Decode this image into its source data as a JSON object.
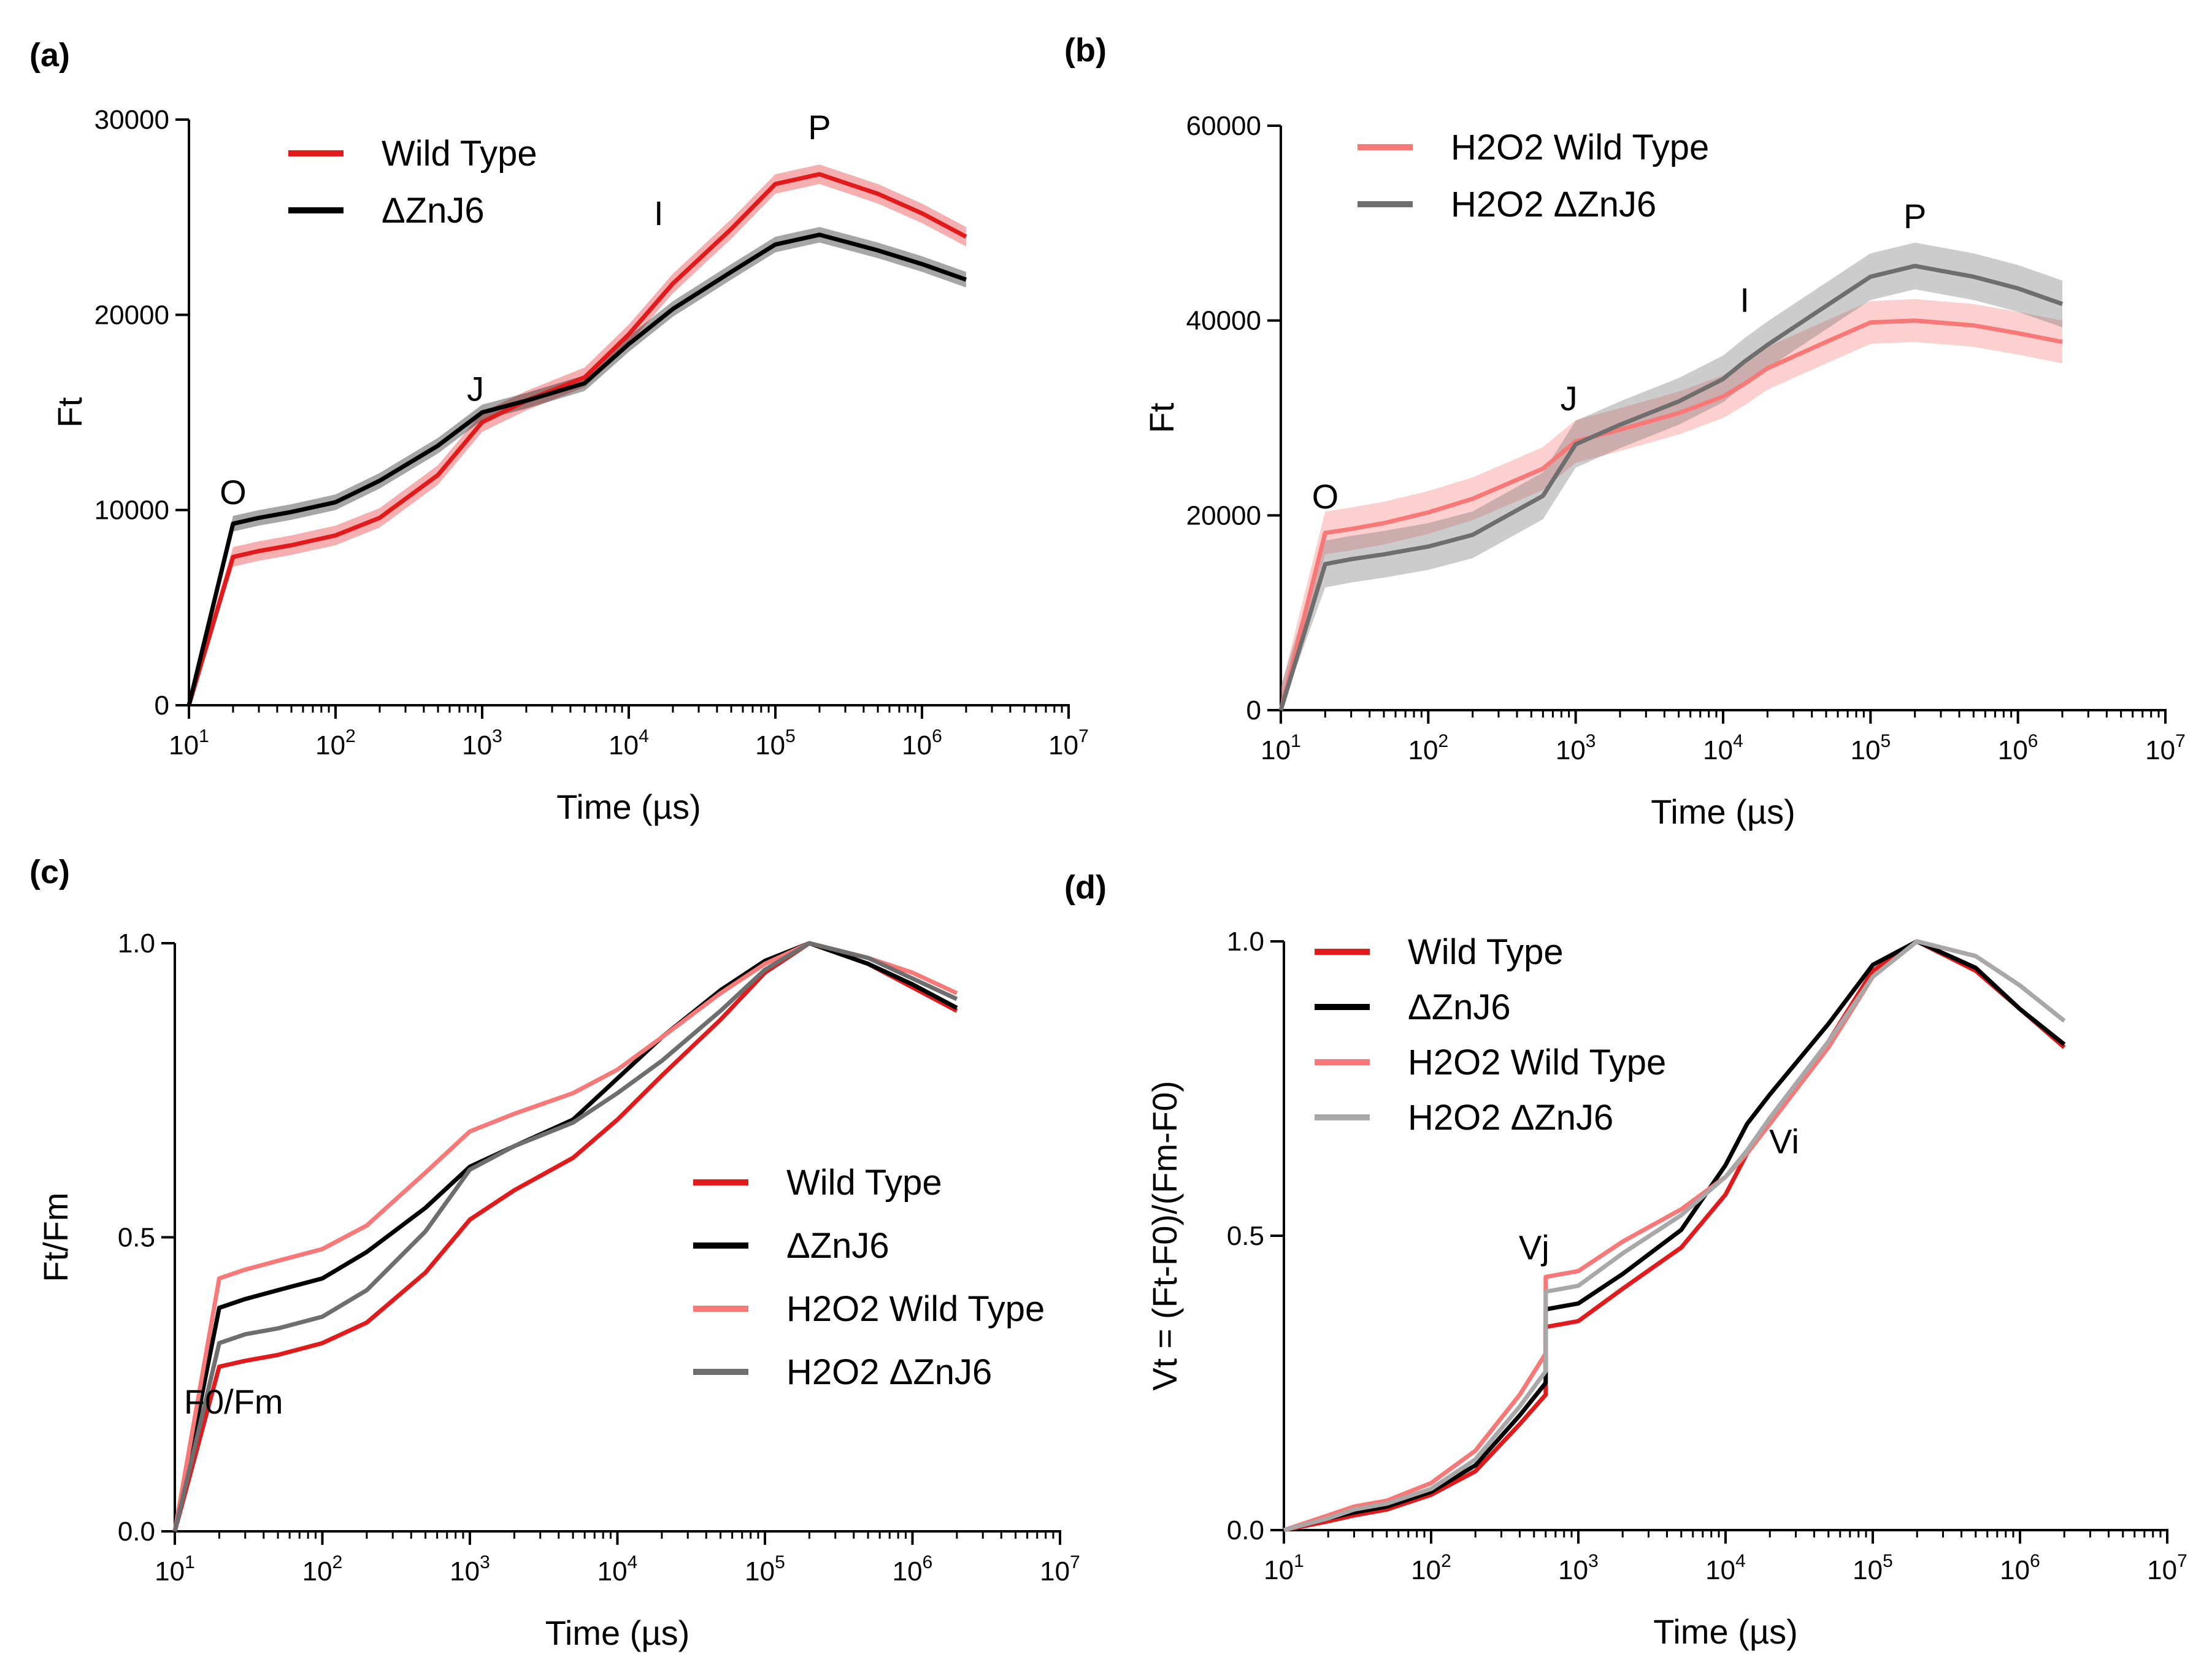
{
  "chart_data": [
    {
      "panel": "(a)",
      "type": "line",
      "xscale": "log",
      "xlim": [
        10,
        10000000
      ],
      "ylim": [
        0,
        30000
      ],
      "xticks": [
        10,
        100,
        1000,
        10000,
        100000,
        1000000,
        10000000
      ],
      "xtick_labels": [
        "10^1",
        "10^2",
        "10^3",
        "10^4",
        "10^5",
        "10^6",
        "10^7"
      ],
      "yticks": [
        0,
        10000,
        20000,
        30000
      ],
      "ytick_labels": [
        "0",
        "10000",
        "20000",
        "30000"
      ],
      "xlabel": "Time (µs)",
      "ylabel": "Ft",
      "legend_position": "top-left",
      "annotations": [
        {
          "text": "O",
          "x": 20,
          "y": 10300
        },
        {
          "text": "J",
          "x": 900,
          "y": 15600
        },
        {
          "text": "I",
          "x": 16000,
          "y": 24600
        },
        {
          "text": "P",
          "x": 200000,
          "y": 29000
        }
      ],
      "series": [
        {
          "name": "Wild Type",
          "color": "#e31a1c",
          "error_band": 500,
          "x": [
            10,
            20,
            30,
            50,
            100,
            200,
            500,
            1000,
            2000,
            5000,
            10000,
            20000,
            50000,
            100000,
            200000,
            500000,
            1000000,
            2000000
          ],
          "y": [
            0,
            7600,
            7900,
            8200,
            8700,
            9600,
            11800,
            14500,
            15600,
            16800,
            19000,
            21600,
            24400,
            26700,
            27200,
            26200,
            25200,
            24000
          ]
        },
        {
          "name": "ΔZnJ6",
          "color": "#000000",
          "error_band": 400,
          "x": [
            10,
            20,
            30,
            50,
            100,
            200,
            500,
            1000,
            2000,
            5000,
            10000,
            20000,
            50000,
            100000,
            200000,
            500000,
            1000000,
            2000000
          ],
          "y": [
            0,
            9300,
            9600,
            9900,
            10400,
            11500,
            13300,
            15000,
            15600,
            16500,
            18500,
            20300,
            22200,
            23600,
            24100,
            23300,
            22600,
            21800
          ]
        }
      ]
    },
    {
      "panel": "(b)",
      "type": "line",
      "xscale": "log",
      "xlim": [
        10,
        10000000
      ],
      "ylim": [
        0,
        60000
      ],
      "xticks": [
        10,
        100,
        1000,
        10000,
        100000,
        1000000,
        10000000
      ],
      "xtick_labels": [
        "10^1",
        "10^2",
        "10^3",
        "10^4",
        "10^5",
        "10^6",
        "10^7"
      ],
      "yticks": [
        0,
        20000,
        40000,
        60000
      ],
      "ytick_labels": [
        "0",
        "20000",
        "40000",
        "60000"
      ],
      "xlabel": "Time (µs)",
      "ylabel": "Ft",
      "legend_position": "top-left",
      "annotations": [
        {
          "text": "O",
          "x": 20,
          "y": 20700
        },
        {
          "text": "J",
          "x": 900,
          "y": 30800
        },
        {
          "text": "I",
          "x": 14000,
          "y": 40900
        },
        {
          "text": "P",
          "x": 200000,
          "y": 49500
        }
      ],
      "series": [
        {
          "name": "H2O2 Wild Type",
          "color": "#f87878",
          "error_band": 2200,
          "x": [
            10,
            20,
            30,
            50,
            100,
            200,
            600,
            1000,
            2000,
            5000,
            10000,
            14000,
            20000,
            50000,
            100000,
            200000,
            500000,
            1000000,
            2000000
          ],
          "y": [
            0,
            18200,
            18600,
            19200,
            20300,
            21700,
            24800,
            27600,
            28800,
            30500,
            32200,
            33500,
            35100,
            37800,
            39800,
            40000,
            39500,
            38700,
            37800
          ]
        },
        {
          "name": "H2O2 ΔZnJ6",
          "color": "#6e6e6e",
          "error_band": 2400,
          "x": [
            10,
            20,
            30,
            50,
            100,
            200,
            600,
            1000,
            2000,
            5000,
            10000,
            14000,
            20000,
            50000,
            100000,
            200000,
            500000,
            1000000,
            2000000
          ],
          "y": [
            0,
            15000,
            15500,
            16000,
            16800,
            18000,
            22000,
            27300,
            29300,
            31700,
            34000,
            35800,
            37500,
            41500,
            44500,
            45600,
            44500,
            43300,
            41700
          ]
        }
      ]
    },
    {
      "panel": "(c)",
      "type": "line",
      "xscale": "log",
      "xlim": [
        10,
        10000000
      ],
      "ylim": [
        0,
        1.0
      ],
      "xticks": [
        10,
        100,
        1000,
        10000,
        100000,
        1000000,
        10000000
      ],
      "xtick_labels": [
        "10^1",
        "10^2",
        "10^3",
        "10^4",
        "10^5",
        "10^6",
        "10^7"
      ],
      "yticks": [
        0,
        0.5,
        1.0
      ],
      "ytick_labels": [
        "0.0",
        "0.5",
        "1.0"
      ],
      "xlabel": "Time (µs)",
      "ylabel": "Ft/Fm",
      "legend_position": "bottom-right",
      "annotations": [
        {
          "text": "F0/Fm",
          "x": 25,
          "y": 0.2
        }
      ],
      "series": [
        {
          "name": "Wild Type",
          "color": "#e31a1c",
          "x": [
            10,
            20,
            30,
            50,
            100,
            200,
            500,
            1000,
            2000,
            5000,
            10000,
            20000,
            50000,
            100000,
            200000,
            500000,
            1000000,
            2000000
          ],
          "y": [
            0,
            0.28,
            0.29,
            0.3,
            0.32,
            0.355,
            0.44,
            0.53,
            0.58,
            0.635,
            0.7,
            0.775,
            0.87,
            0.95,
            1.0,
            0.965,
            0.925,
            0.885
          ]
        },
        {
          "name": "ΔZnJ6",
          "color": "#000000",
          "x": [
            10,
            20,
            30,
            50,
            100,
            200,
            500,
            1000,
            2000,
            5000,
            10000,
            20000,
            50000,
            100000,
            200000,
            500000,
            1000000,
            2000000
          ],
          "y": [
            0,
            0.38,
            0.395,
            0.41,
            0.43,
            0.475,
            0.55,
            0.62,
            0.655,
            0.7,
            0.77,
            0.84,
            0.92,
            0.97,
            1.0,
            0.965,
            0.93,
            0.89
          ]
        },
        {
          "name": "H2O2 Wild Type",
          "color": "#f87878",
          "x": [
            10,
            20,
            30,
            50,
            100,
            200,
            500,
            1000,
            2000,
            5000,
            10000,
            20000,
            50000,
            100000,
            200000,
            500000,
            1000000,
            2000000
          ],
          "y": [
            0,
            0.43,
            0.445,
            0.46,
            0.48,
            0.52,
            0.61,
            0.68,
            0.71,
            0.745,
            0.785,
            0.84,
            0.915,
            0.965,
            1.0,
            0.975,
            0.95,
            0.915
          ]
        },
        {
          "name": "H2O2 ΔZnJ6",
          "color": "#6e6e6e",
          "x": [
            10,
            20,
            30,
            50,
            100,
            200,
            500,
            1000,
            2000,
            5000,
            10000,
            20000,
            50000,
            100000,
            200000,
            500000,
            1000000,
            2000000
          ],
          "y": [
            0,
            0.32,
            0.335,
            0.345,
            0.365,
            0.41,
            0.51,
            0.615,
            0.655,
            0.695,
            0.745,
            0.8,
            0.885,
            0.955,
            1.0,
            0.975,
            0.94,
            0.905
          ]
        }
      ]
    },
    {
      "panel": "(d)",
      "type": "line",
      "xscale": "log",
      "xlim": [
        10,
        10000000
      ],
      "ylim": [
        0,
        1.0
      ],
      "xticks": [
        10,
        100,
        1000,
        10000,
        100000,
        1000000,
        10000000
      ],
      "xtick_labels": [
        "10^1",
        "10^2",
        "10^3",
        "10^4",
        "10^5",
        "10^6",
        "10^7"
      ],
      "yticks": [
        0,
        0.5,
        1.0
      ],
      "ytick_labels": [
        "0.0",
        "0.5",
        "1.0"
      ],
      "xlabel": "Time (µs)",
      "ylabel": "Vt = (Ft-F0)/(Fm-F0)",
      "legend_position": "top-left",
      "annotations": [
        {
          "text": "Vj",
          "x": 500,
          "y": 0.46
        },
        {
          "text": "Vi",
          "x": 25000,
          "y": 0.64
        }
      ],
      "series": [
        {
          "name": "Wild Type",
          "color": "#e31a1c",
          "x": [
            10,
            20,
            30,
            50,
            100,
            200,
            400,
            600,
            600.1,
            1000,
            2000,
            5000,
            10000,
            14000,
            20000,
            50000,
            100000,
            200000,
            500000,
            1000000,
            2000000
          ],
          "y": [
            0,
            0.015,
            0.025,
            0.035,
            0.06,
            0.1,
            0.18,
            0.23,
            0.345,
            0.355,
            0.41,
            0.48,
            0.57,
            0.64,
            0.7,
            0.83,
            0.95,
            1.0,
            0.95,
            0.885,
            0.82
          ]
        },
        {
          "name": "ΔZnJ6",
          "color": "#000000",
          "x": [
            10,
            20,
            30,
            50,
            100,
            200,
            400,
            600,
            600.1,
            1000,
            2000,
            5000,
            10000,
            14000,
            20000,
            50000,
            100000,
            200000,
            500000,
            1000000,
            2000000
          ],
          "y": [
            0,
            0.02,
            0.03,
            0.04,
            0.065,
            0.11,
            0.195,
            0.25,
            0.375,
            0.385,
            0.435,
            0.51,
            0.62,
            0.69,
            0.74,
            0.86,
            0.96,
            1.0,
            0.955,
            0.885,
            0.825
          ]
        },
        {
          "name": "H2O2 Wild Type",
          "color": "#f87878",
          "x": [
            10,
            20,
            30,
            50,
            100,
            200,
            400,
            600,
            600.1,
            1000,
            2000,
            5000,
            10000,
            14000,
            20000,
            50000,
            100000,
            200000,
            500000,
            1000000,
            2000000
          ],
          "y": [
            0,
            0.025,
            0.04,
            0.05,
            0.08,
            0.135,
            0.23,
            0.3,
            0.43,
            0.44,
            0.49,
            0.545,
            0.6,
            0.64,
            0.69,
            0.82,
            0.94,
            1.0,
            0.975,
            0.925,
            0.865
          ]
        },
        {
          "name": "H2O2 ΔZnJ6",
          "color": "#a8a8a8",
          "x": [
            10,
            20,
            30,
            50,
            100,
            200,
            400,
            600,
            600.1,
            1000,
            2000,
            5000,
            10000,
            14000,
            20000,
            50000,
            100000,
            200000,
            500000,
            1000000,
            2000000
          ],
          "y": [
            0,
            0.02,
            0.035,
            0.045,
            0.07,
            0.12,
            0.21,
            0.27,
            0.405,
            0.415,
            0.47,
            0.535,
            0.6,
            0.645,
            0.7,
            0.83,
            0.94,
            1.0,
            0.975,
            0.925,
            0.865
          ]
        }
      ]
    }
  ]
}
